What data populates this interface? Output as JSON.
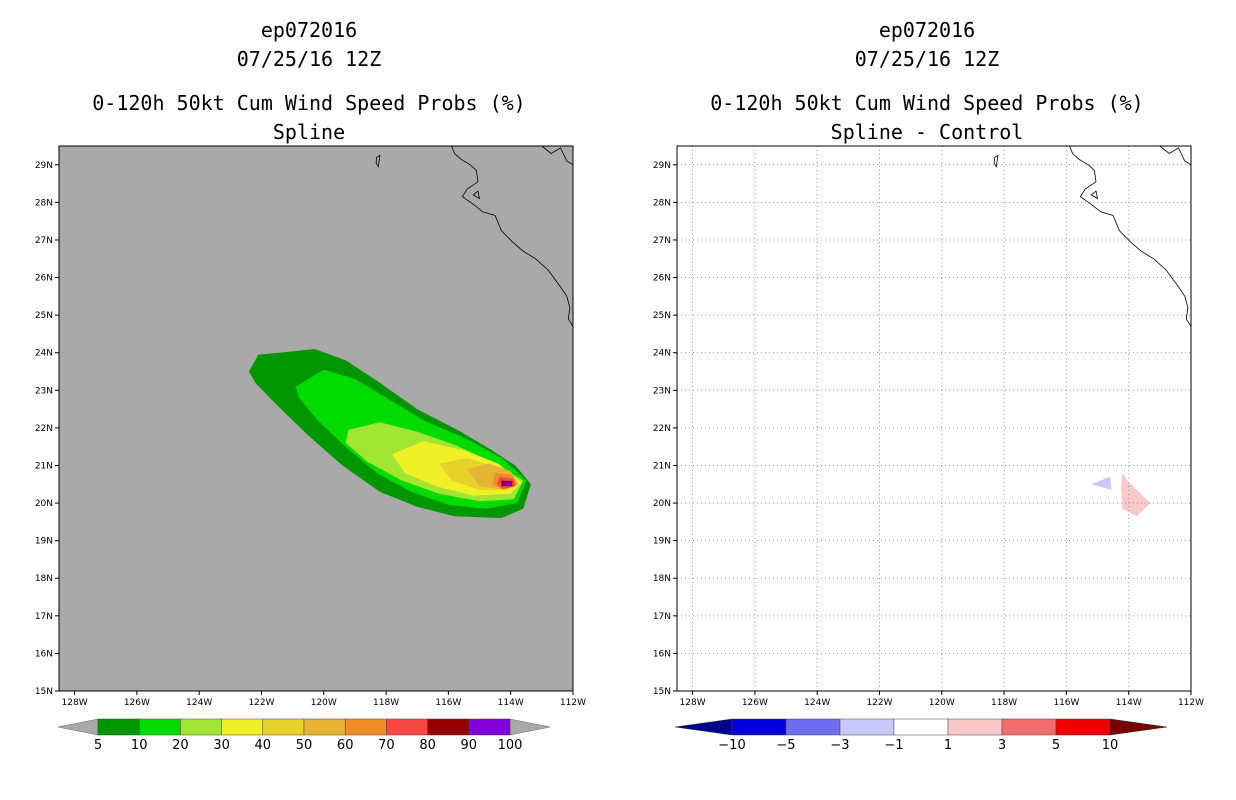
{
  "chart_data": [
    {
      "type": "filled-contour-map",
      "storm_id": "ep072016",
      "datetime": "07/25/16 12Z",
      "title": "0-120h 50kt Cum Wind Speed Probs (%)",
      "subtitle": "Spline",
      "lon_range": [
        -128.5,
        -112
      ],
      "lat_range": [
        15,
        29.5
      ],
      "x_ticks": [
        "128W",
        "126W",
        "124W",
        "122W",
        "120W",
        "118W",
        "116W",
        "114W",
        "112W"
      ],
      "y_ticks": [
        "15N",
        "16N",
        "17N",
        "18N",
        "19N",
        "20N",
        "21N",
        "22N",
        "23N",
        "24N",
        "25N",
        "26N",
        "27N",
        "28N",
        "29N"
      ],
      "grid": false,
      "background_color": "#a9a9a9",
      "colorbar": {
        "labels": [
          "5",
          "10",
          "20",
          "30",
          "40",
          "50",
          "60",
          "70",
          "80",
          "90",
          "100"
        ],
        "colors": [
          "#009600",
          "#00dc00",
          "#a0e632",
          "#f0f028",
          "#e6d228",
          "#e6b432",
          "#f08c28",
          "#fa4646",
          "#960000",
          "#8200dc"
        ],
        "end_color": "#a9a9a9"
      },
      "contours": [
        {
          "level": 5,
          "color": "#009600",
          "polygon": [
            [
              -122.4,
              23.5
            ],
            [
              -122.1,
              23.95
            ],
            [
              -121.4,
              24.0
            ],
            [
              -120.3,
              24.1
            ],
            [
              -119.3,
              23.8
            ],
            [
              -118.2,
              23.2
            ],
            [
              -117.0,
              22.5
            ],
            [
              -115.6,
              21.9
            ],
            [
              -114.6,
              21.4
            ],
            [
              -113.85,
              21.0
            ],
            [
              -113.35,
              20.5
            ],
            [
              -113.6,
              19.85
            ],
            [
              -114.3,
              19.6
            ],
            [
              -115.8,
              19.65
            ],
            [
              -117.0,
              19.9
            ],
            [
              -118.2,
              20.3
            ],
            [
              -119.4,
              21.0
            ],
            [
              -120.5,
              21.8
            ],
            [
              -121.5,
              22.6
            ],
            [
              -122.2,
              23.2
            ]
          ]
        },
        {
          "level": 10,
          "color": "#00dc00",
          "polygon": [
            [
              -120.9,
              23.1
            ],
            [
              -120.0,
              23.55
            ],
            [
              -119.0,
              23.3
            ],
            [
              -118.0,
              22.8
            ],
            [
              -116.8,
              22.2
            ],
            [
              -115.4,
              21.7
            ],
            [
              -114.3,
              21.2
            ],
            [
              -113.5,
              20.6
            ],
            [
              -113.8,
              20.0
            ],
            [
              -114.8,
              19.85
            ],
            [
              -116.0,
              19.95
            ],
            [
              -117.2,
              20.3
            ],
            [
              -118.3,
              20.8
            ],
            [
              -119.3,
              21.5
            ],
            [
              -120.2,
              22.2
            ],
            [
              -120.8,
              22.8
            ]
          ]
        },
        {
          "level": 20,
          "color": "#a0e632",
          "polygon": [
            [
              -119.2,
              21.95
            ],
            [
              -118.2,
              22.15
            ],
            [
              -117.0,
              21.9
            ],
            [
              -115.8,
              21.55
            ],
            [
              -114.6,
              21.1
            ],
            [
              -113.6,
              20.6
            ],
            [
              -113.9,
              20.1
            ],
            [
              -115.0,
              20.05
            ],
            [
              -116.3,
              20.25
            ],
            [
              -117.5,
              20.6
            ],
            [
              -118.6,
              21.1
            ],
            [
              -119.3,
              21.6
            ]
          ]
        },
        {
          "level": 30,
          "color": "#f0f028",
          "polygon": [
            [
              -117.8,
              21.3
            ],
            [
              -116.8,
              21.65
            ],
            [
              -115.5,
              21.4
            ],
            [
              -114.4,
              21.05
            ],
            [
              -113.65,
              20.55
            ],
            [
              -114.0,
              20.25
            ],
            [
              -115.2,
              20.2
            ],
            [
              -116.4,
              20.45
            ],
            [
              -117.4,
              20.8
            ]
          ]
        },
        {
          "level": 40,
          "color": "#e6d228",
          "polygon": [
            [
              -116.3,
              21.05
            ],
            [
              -115.4,
              21.2
            ],
            [
              -114.4,
              20.95
            ],
            [
              -113.75,
              20.55
            ],
            [
              -114.1,
              20.35
            ],
            [
              -115.0,
              20.35
            ],
            [
              -115.9,
              20.6
            ]
          ]
        },
        {
          "level": 50,
          "color": "#e6b432",
          "polygon": [
            [
              -115.4,
              20.9
            ],
            [
              -114.7,
              21.05
            ],
            [
              -114.0,
              20.85
            ],
            [
              -113.75,
              20.5
            ],
            [
              -114.2,
              20.35
            ],
            [
              -115.0,
              20.45
            ]
          ]
        },
        {
          "level": 60,
          "color": "#f08c28",
          "polygon": [
            [
              -114.5,
              20.8
            ],
            [
              -114.0,
              20.75
            ],
            [
              -113.8,
              20.5
            ],
            [
              -114.2,
              20.35
            ],
            [
              -114.6,
              20.5
            ]
          ]
        },
        {
          "level": 70,
          "color": "#fa4646",
          "polygon": [
            [
              -114.35,
              20.7
            ],
            [
              -113.9,
              20.65
            ],
            [
              -113.85,
              20.45
            ],
            [
              -114.25,
              20.38
            ],
            [
              -114.45,
              20.5
            ]
          ]
        },
        {
          "level": 80,
          "color": "#960000",
          "polygon": [
            [
              -114.3,
              20.6
            ],
            [
              -113.95,
              20.58
            ],
            [
              -113.95,
              20.45
            ],
            [
              -114.3,
              20.45
            ]
          ]
        },
        {
          "level": 90,
          "color": "#8200dc",
          "polygon": [
            [
              -114.2,
              20.56
            ],
            [
              -114.0,
              20.55
            ],
            [
              -114.0,
              20.47
            ],
            [
              -114.2,
              20.48
            ]
          ]
        }
      ]
    },
    {
      "type": "filled-contour-map",
      "storm_id": "ep072016",
      "datetime": "07/25/16 12Z",
      "title": "0-120h 50kt Cum Wind Speed Probs (%)",
      "subtitle": "Spline - Control",
      "lon_range": [
        -128.5,
        -112
      ],
      "lat_range": [
        15,
        29.5
      ],
      "x_ticks": [
        "128W",
        "126W",
        "124W",
        "122W",
        "120W",
        "118W",
        "116W",
        "114W",
        "112W"
      ],
      "y_ticks": [
        "15N",
        "16N",
        "17N",
        "18N",
        "19N",
        "20N",
        "21N",
        "22N",
        "23N",
        "24N",
        "25N",
        "26N",
        "27N",
        "28N",
        "29N"
      ],
      "grid": true,
      "background_color": "#ffffff",
      "colorbar": {
        "labels": [
          "-10",
          "-5",
          "-3",
          "-1",
          "1",
          "3",
          "5",
          "10"
        ],
        "colors": [
          "#0000dc",
          "#6e6ef0",
          "#c8c8fa",
          "#ffffff",
          "#fac8c8",
          "#f06e6e",
          "#f00000"
        ],
        "end_colors": [
          "#00008c",
          "#780000"
        ]
      },
      "contours": [
        {
          "level": -3,
          "color": "#c8c8fa",
          "polygon": [
            [
              -115.2,
              20.5
            ],
            [
              -114.6,
              20.7
            ],
            [
              -114.55,
              20.35
            ]
          ]
        },
        {
          "level": 1,
          "color": "#fac8c8",
          "polygon": [
            [
              -114.2,
              20.8
            ],
            [
              -114.0,
              20.55
            ],
            [
              -113.3,
              20.0
            ],
            [
              -113.75,
              19.65
            ],
            [
              -114.2,
              19.85
            ],
            [
              -114.25,
              20.4
            ]
          ]
        }
      ]
    }
  ]
}
